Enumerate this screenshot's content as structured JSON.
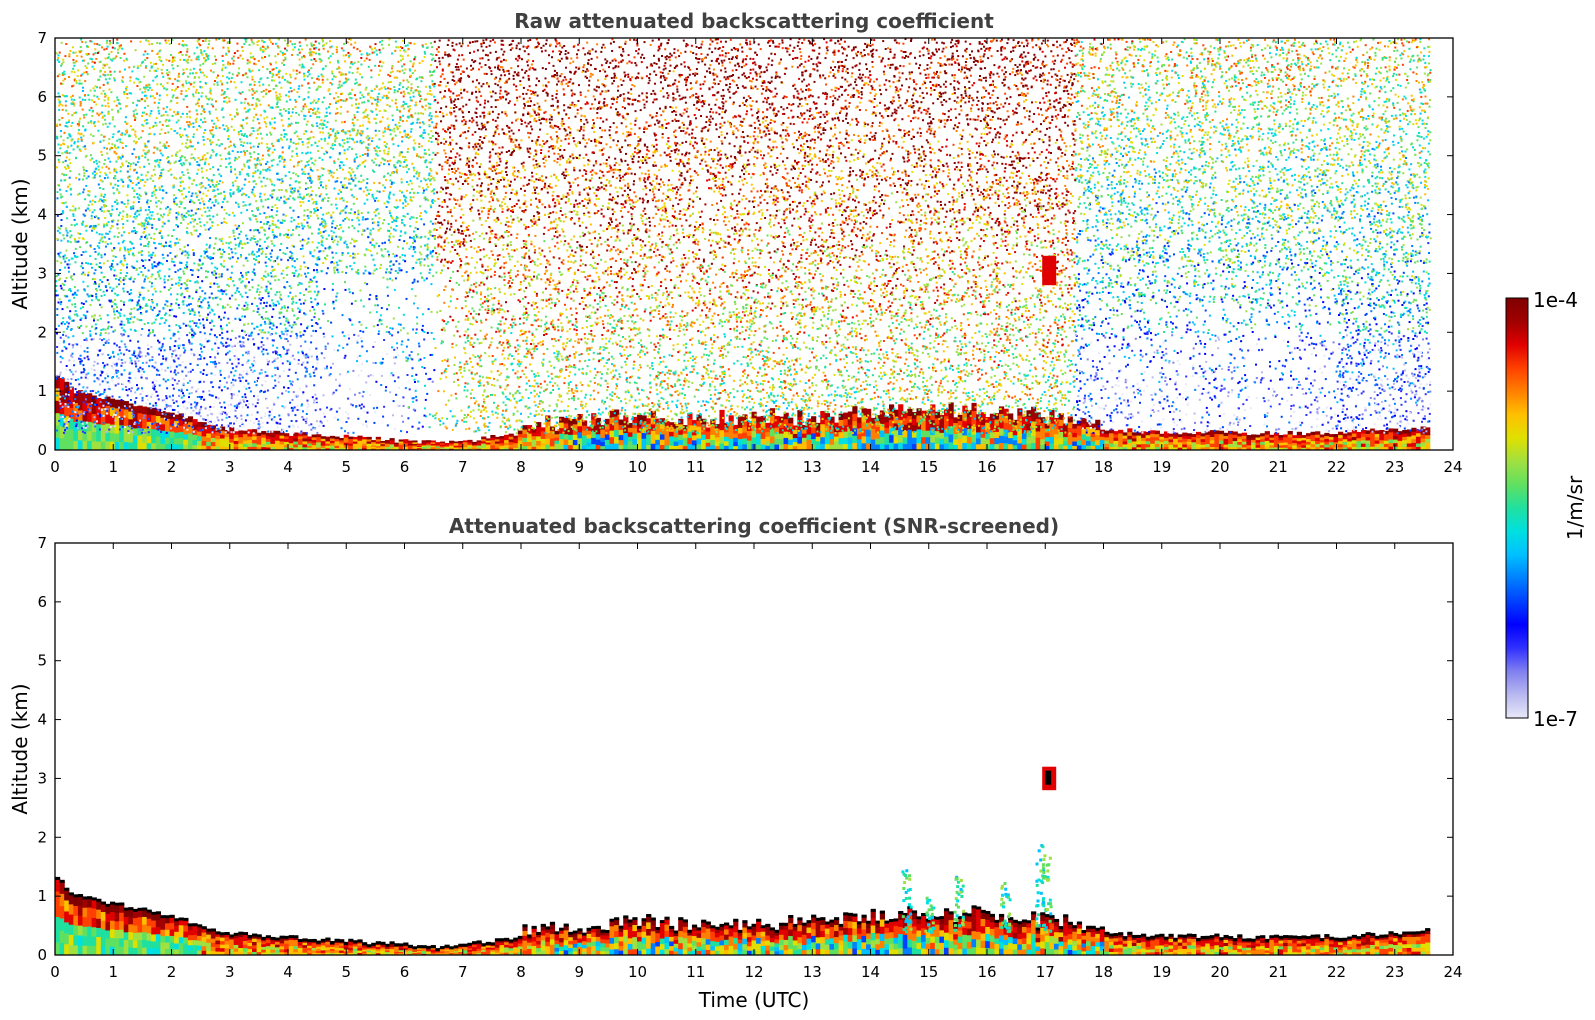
{
  "chart_data": [
    {
      "type": "heatmap",
      "title": "Raw attenuated backscattering coefficient",
      "xlabel": "",
      "ylabel": "Altitude (km)",
      "xlim": [
        0,
        24
      ],
      "ylim": [
        0,
        7
      ],
      "xticks": [
        "0",
        "1",
        "2",
        "3",
        "4",
        "5",
        "6",
        "7",
        "8",
        "9",
        "10",
        "11",
        "12",
        "13",
        "14",
        "15",
        "16",
        "17",
        "18",
        "19",
        "20",
        "21",
        "22",
        "23",
        "24"
      ],
      "yticks": [
        "0",
        "1",
        "2",
        "3",
        "4",
        "5",
        "6",
        "7"
      ],
      "data_end_time": 23.6,
      "boundary_layer_top_km": [
        [
          0.0,
          1.3
        ],
        [
          0.3,
          1.0
        ],
        [
          1.0,
          0.85
        ],
        [
          2.0,
          0.65
        ],
        [
          2.5,
          0.45
        ],
        [
          3.0,
          0.35
        ],
        [
          4.0,
          0.28
        ],
        [
          5.0,
          0.22
        ],
        [
          6.0,
          0.15
        ],
        [
          6.5,
          0.12
        ],
        [
          7.0,
          0.15
        ],
        [
          7.5,
          0.22
        ],
        [
          8.0,
          0.3
        ],
        [
          9.0,
          0.35
        ],
        [
          10.0,
          0.45
        ],
        [
          11.0,
          0.4
        ],
        [
          12.0,
          0.42
        ],
        [
          13.0,
          0.45
        ],
        [
          14.0,
          0.5
        ],
        [
          15.0,
          0.55
        ],
        [
          16.0,
          0.55
        ],
        [
          17.0,
          0.45
        ],
        [
          18.0,
          0.35
        ],
        [
          19.0,
          0.3
        ],
        [
          20.0,
          0.3
        ],
        [
          21.0,
          0.28
        ],
        [
          22.0,
          0.3
        ],
        [
          23.0,
          0.35
        ],
        [
          23.6,
          0.4
        ]
      ],
      "features": [
        {
          "label": "cloud",
          "time": 17.05,
          "alt_km": [
            2.8,
            3.3
          ]
        }
      ]
    },
    {
      "type": "heatmap",
      "title": "Attenuated backscattering coefficient (SNR-screened)",
      "xlabel": "Time (UTC)",
      "ylabel": "Altitude (km)",
      "xlim": [
        0,
        24
      ],
      "ylim": [
        0,
        7
      ],
      "xticks": [
        "0",
        "1",
        "2",
        "3",
        "4",
        "5",
        "6",
        "7",
        "8",
        "9",
        "10",
        "11",
        "12",
        "13",
        "14",
        "15",
        "16",
        "17",
        "18",
        "19",
        "20",
        "21",
        "22",
        "23",
        "24"
      ],
      "yticks": [
        "0",
        "1",
        "2",
        "3",
        "4",
        "5",
        "6",
        "7"
      ],
      "data_end_time": 23.6,
      "features": [
        {
          "label": "cloud",
          "time": 17.05,
          "alt_km": [
            2.8,
            3.2
          ]
        }
      ]
    }
  ],
  "colorbar": {
    "label": "1/m/sr",
    "max_label": "1e-4",
    "min_label": "1e-7",
    "scale": "log",
    "colors": [
      "#e8e8f8",
      "#b8b8f0",
      "#8080f0",
      "#3030ff",
      "#0000ff",
      "#0040ff",
      "#0080ff",
      "#00c0ff",
      "#00e0e0",
      "#20e0a0",
      "#60e060",
      "#a0e040",
      "#e0e000",
      "#ffc000",
      "#ff8000",
      "#ff4000",
      "#e00000",
      "#a00000",
      "#800000"
    ]
  }
}
